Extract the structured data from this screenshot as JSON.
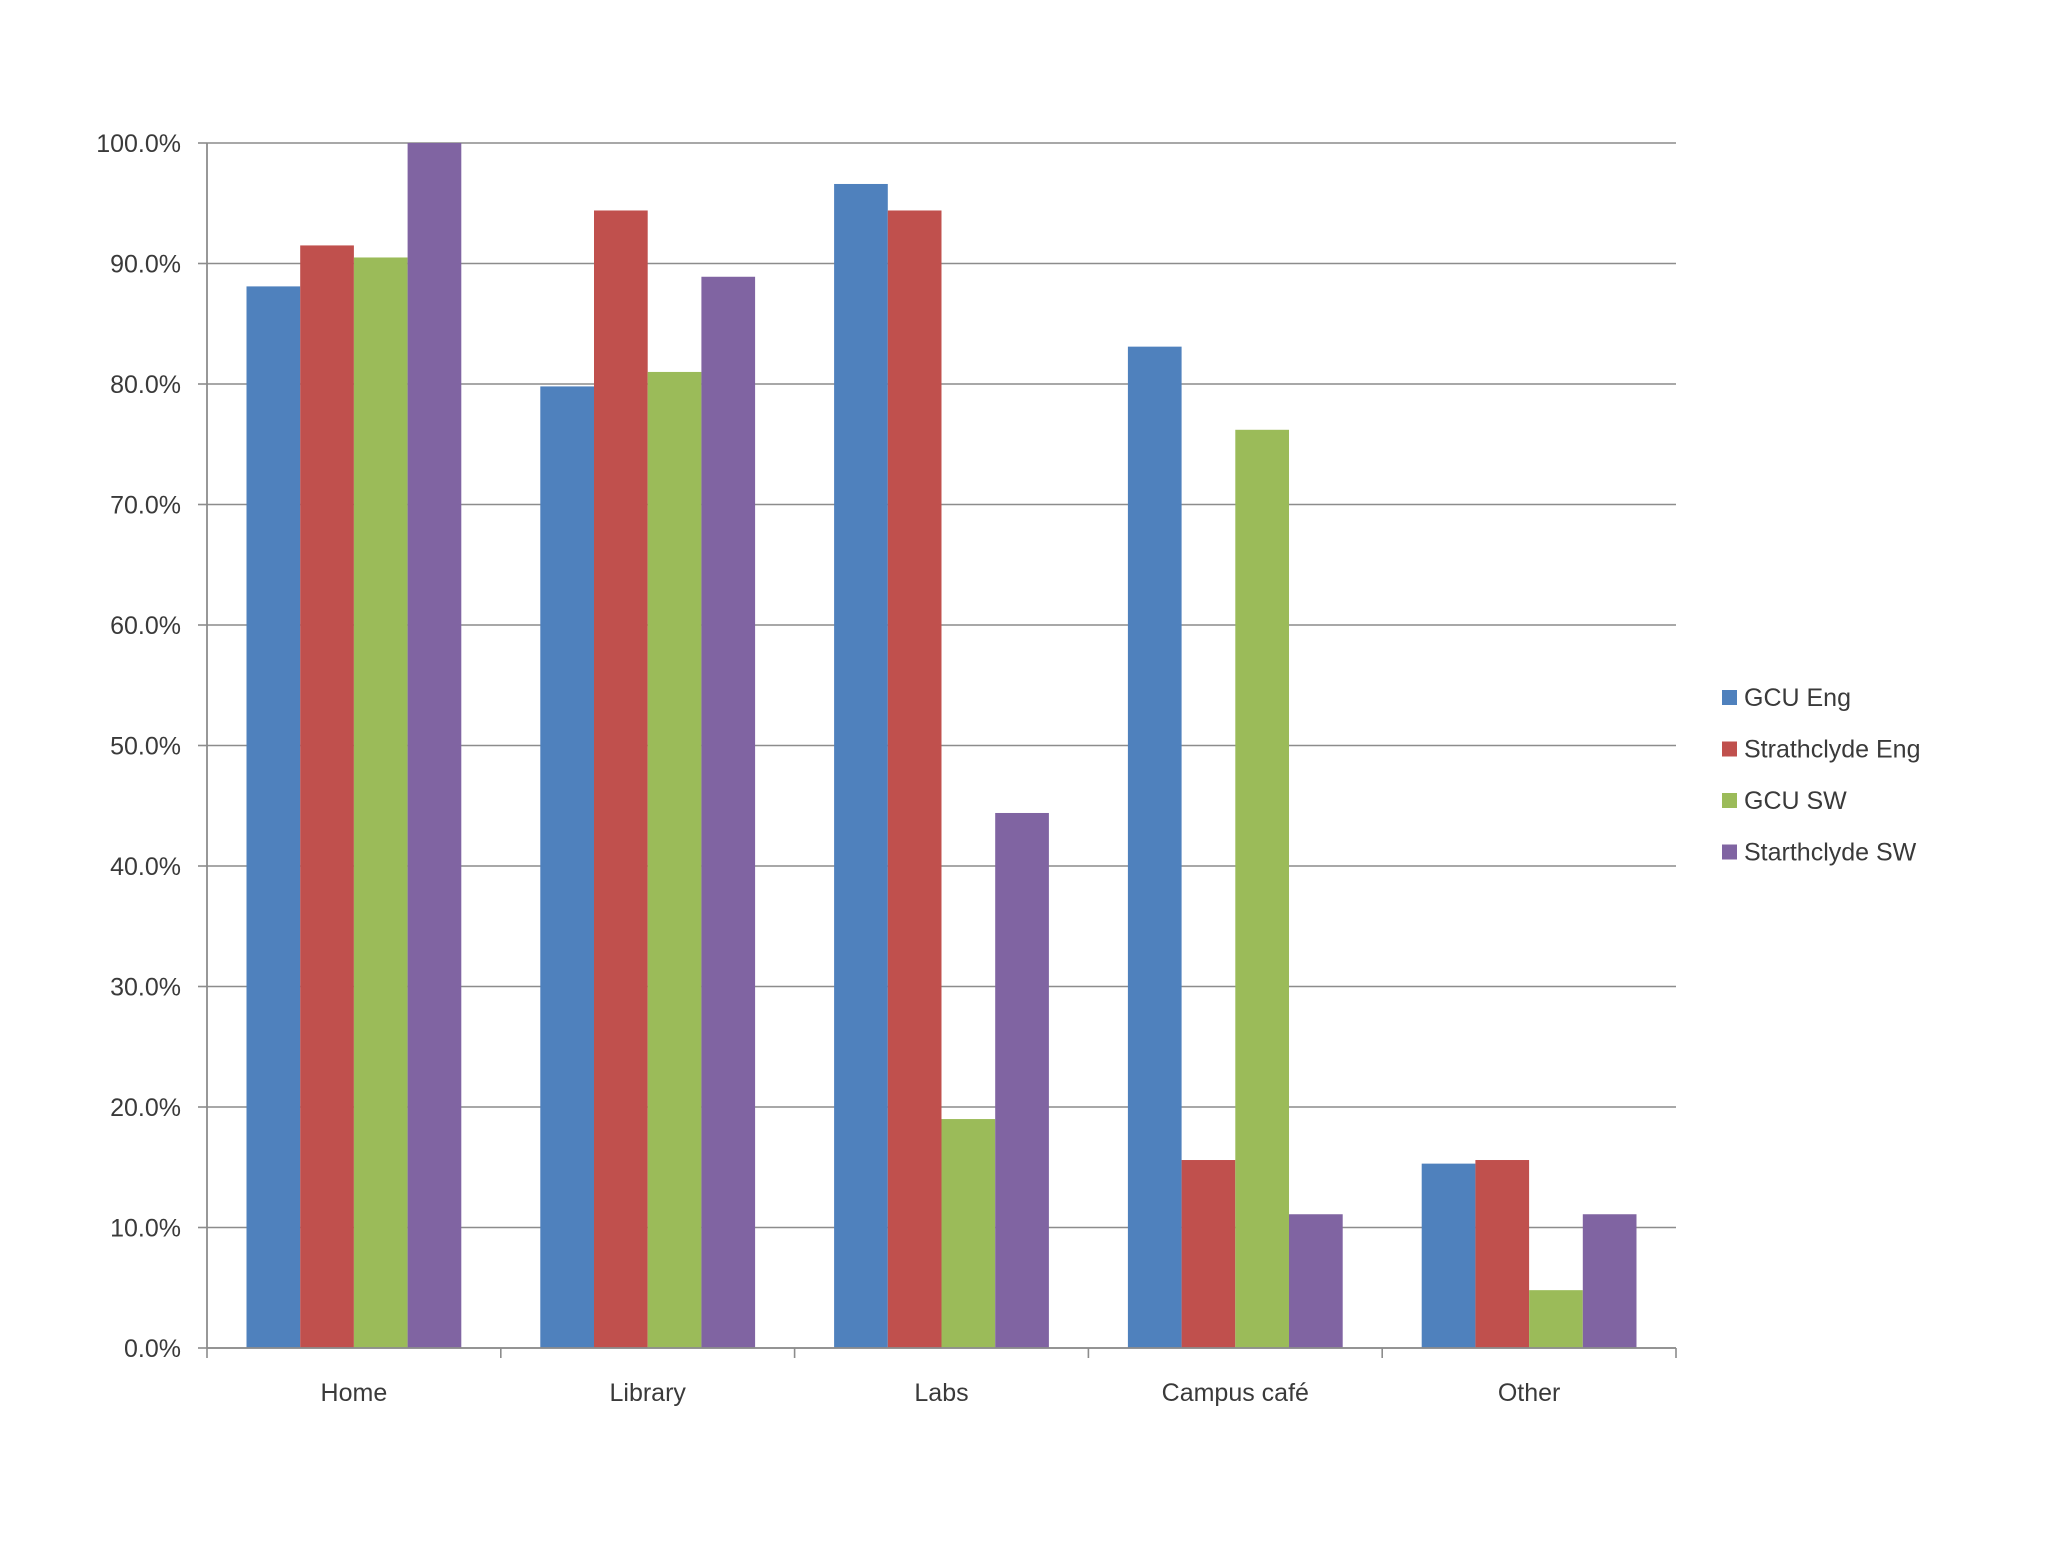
{
  "chart_data": {
    "type": "bar",
    "title": "",
    "xlabel": "",
    "ylabel": "",
    "categories": [
      "Home",
      "Library",
      "Labs",
      "Campus café",
      "Other"
    ],
    "ylim": [
      0,
      100
    ],
    "y_ticks": [
      "0.0%",
      "10.0%",
      "20.0%",
      "30.0%",
      "40.0%",
      "50.0%",
      "60.0%",
      "70.0%",
      "80.0%",
      "90.0%",
      "100.0%"
    ],
    "grid": true,
    "legend_position": "right",
    "series": [
      {
        "name": "GCU Eng",
        "color": "#4f81bd",
        "values": [
          88.1,
          79.8,
          96.6,
          83.1,
          15.3
        ]
      },
      {
        "name": "Strathclyde Eng",
        "color": "#c0504d",
        "values": [
          91.5,
          94.4,
          94.4,
          15.6,
          15.6
        ]
      },
      {
        "name": "GCU SW",
        "color": "#9bbb59",
        "values": [
          90.5,
          81.0,
          19.0,
          76.2,
          4.8
        ]
      },
      {
        "name": "Starthclyde SW",
        "color": "#8064a2",
        "values": [
          100.0,
          88.9,
          44.4,
          11.1,
          11.1
        ]
      }
    ]
  }
}
